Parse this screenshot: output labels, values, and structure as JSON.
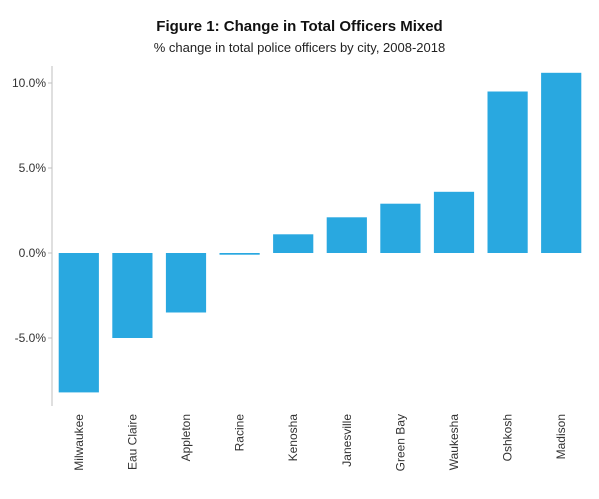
{
  "chart_data": {
    "type": "bar",
    "title": "Figure 1: Change in Total Officers Mixed",
    "subtitle": "% change in total police officers by city, 2008-2018",
    "xlabel": "",
    "ylabel": "",
    "categories": [
      "Milwaukee",
      "Eau Claire",
      "Appleton",
      "Racine",
      "Kenosha",
      "Janesville",
      "Green Bay",
      "Waukesha",
      "Oshkosh",
      "Madison"
    ],
    "values": [
      -8.2,
      -5.0,
      -3.5,
      -0.1,
      1.1,
      2.1,
      2.9,
      3.6,
      9.5,
      10.6
    ],
    "ylim": [
      -9.0,
      11.0
    ],
    "yticks": [
      10.0,
      5.0,
      0.0,
      -5.0
    ],
    "ytick_labels": [
      "10.0%",
      "5.0%",
      "0.0%",
      "-5.0%"
    ],
    "bar_color": "#29a8e0",
    "grid": false,
    "legend": "none"
  }
}
